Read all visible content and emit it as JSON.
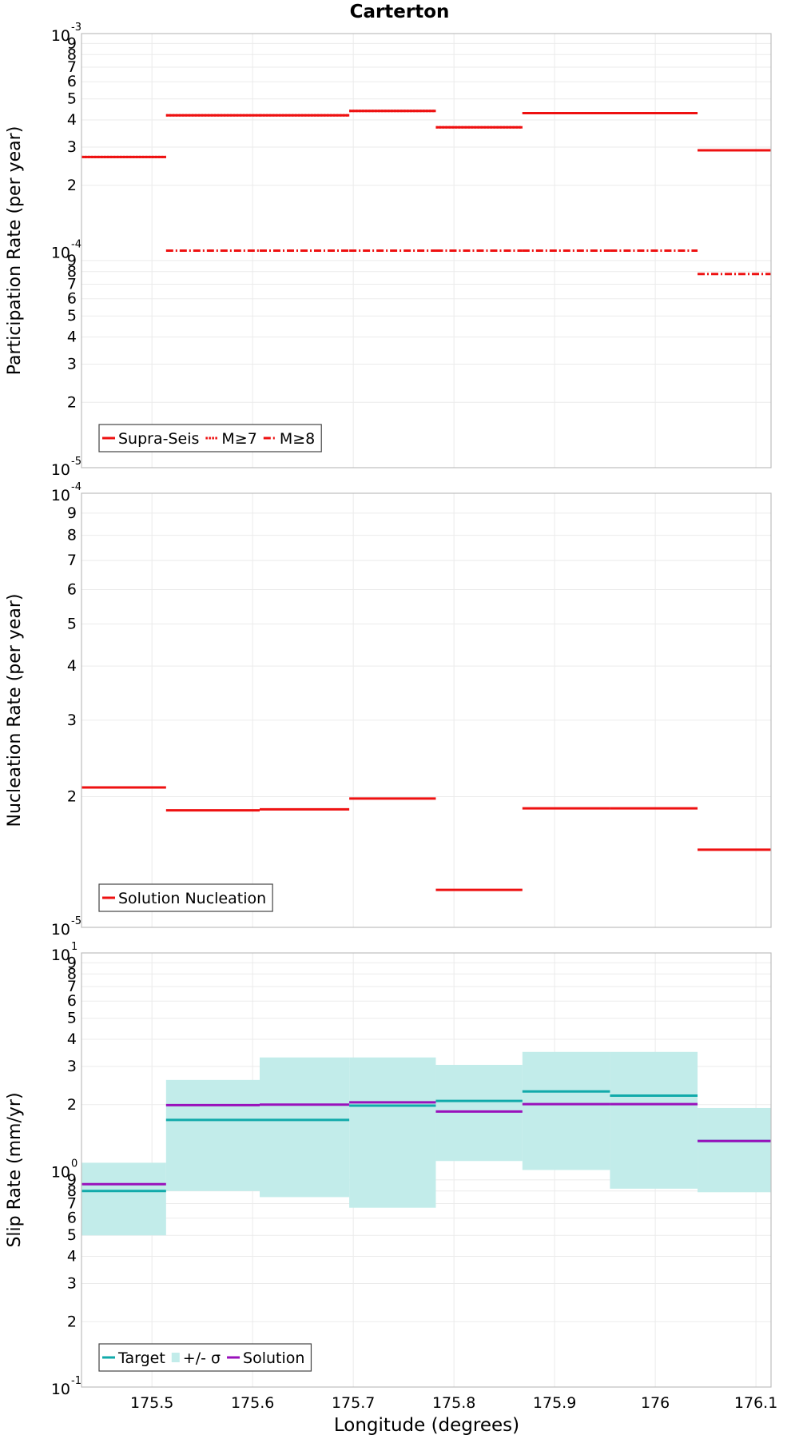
{
  "title": "Carterton",
  "xlabel": "Longitude (degrees)",
  "x_ticks": [
    {
      "value": 175.5,
      "label": "175.5"
    },
    {
      "value": 175.6,
      "label": "175.6"
    },
    {
      "value": 175.7,
      "label": "175.7"
    },
    {
      "value": 175.8,
      "label": "175.8"
    },
    {
      "value": 175.9,
      "label": "175.9"
    },
    {
      "value": 176.0,
      "label": "176"
    },
    {
      "value": 176.1,
      "label": "176.1"
    }
  ],
  "colors": {
    "red": "#ee1111",
    "teal": "#11aaaa",
    "band": "#c2ecea",
    "purple": "#9911bb"
  },
  "chart_data": [
    {
      "type": "line",
      "ylabel": "Participation Rate (per year)",
      "yscale": "log",
      "ylim": [
        1e-05,
        0.001
      ],
      "xlim": [
        175.43,
        176.115
      ],
      "decades": [
        {
          "base": "10",
          "exp": "-5"
        },
        {
          "base": "10",
          "exp": "-4"
        },
        {
          "base": "10",
          "exp": "-3"
        }
      ],
      "series": [
        {
          "name": "Supra-Seis",
          "style": "solid",
          "color": "#ee1111",
          "steps": [
            [
              175.43,
              175.514,
              0.00027
            ],
            [
              175.514,
              175.607,
              0.00042
            ],
            [
              175.607,
              175.696,
              0.00042
            ],
            [
              175.696,
              175.782,
              0.00044
            ],
            [
              175.782,
              175.868,
              0.00037
            ],
            [
              175.868,
              175.955,
              0.00043
            ],
            [
              175.955,
              176.042,
              0.00043
            ],
            [
              176.042,
              176.115,
              0.00029
            ]
          ]
        },
        {
          "name": "M≥7",
          "style": "dotted",
          "color": "#ee1111",
          "steps": [
            [
              175.43,
              175.514,
              0.00027
            ],
            [
              175.514,
              175.607,
              0.00042
            ],
            [
              175.607,
              175.696,
              0.00042
            ],
            [
              175.696,
              175.782,
              0.00044
            ],
            [
              175.782,
              175.868,
              0.00037
            ],
            [
              175.868,
              175.955,
              0.00043
            ],
            [
              175.955,
              176.042,
              0.00043
            ],
            [
              176.042,
              176.115,
              0.00029
            ]
          ]
        },
        {
          "name": "M≥8",
          "style": "dashdot",
          "color": "#ee1111",
          "steps": [
            [
              175.514,
              175.607,
              0.0001
            ],
            [
              175.607,
              175.696,
              0.0001
            ],
            [
              175.696,
              175.782,
              0.0001
            ],
            [
              175.782,
              175.868,
              0.0001
            ],
            [
              175.868,
              175.955,
              0.0001
            ],
            [
              175.955,
              176.042,
              0.0001
            ],
            [
              176.042,
              176.115,
              7.8e-05
            ]
          ]
        }
      ],
      "legend": [
        {
          "label": "Supra-Seis",
          "kind": "solid",
          "color": "#ee1111"
        },
        {
          "label": "M≥7",
          "kind": "dotted",
          "color": "#ee1111"
        },
        {
          "label": "M≥8",
          "kind": "dashdot",
          "color": "#ee1111"
        }
      ],
      "legend_position": "bottom-left"
    },
    {
      "type": "line",
      "ylabel": "Nucleation Rate (per year)",
      "yscale": "log",
      "ylim": [
        1e-05,
        0.0001
      ],
      "xlim": [
        175.43,
        176.115
      ],
      "decades": [
        {
          "base": "10",
          "exp": "-5"
        },
        {
          "base": "10",
          "exp": "-4"
        }
      ],
      "series": [
        {
          "name": "Solution Nucleation",
          "style": "solid",
          "color": "#ee1111",
          "steps": [
            [
              175.43,
              175.514,
              2.1e-05
            ],
            [
              175.514,
              175.607,
              1.86e-05
            ],
            [
              175.607,
              175.696,
              1.87e-05
            ],
            [
              175.696,
              175.782,
              1.98e-05
            ],
            [
              175.782,
              175.868,
              1.22e-05
            ],
            [
              175.868,
              175.955,
              1.88e-05
            ],
            [
              175.955,
              176.042,
              1.88e-05
            ],
            [
              176.042,
              176.115,
              1.51e-05
            ]
          ]
        }
      ],
      "legend": [
        {
          "label": "Solution Nucleation",
          "kind": "solid",
          "color": "#ee1111"
        }
      ],
      "legend_position": "bottom-left"
    },
    {
      "type": "line",
      "ylabel": "Slip Rate (mm/yr)",
      "yscale": "log",
      "ylim": [
        0.1,
        10
      ],
      "xlim": [
        175.43,
        176.115
      ],
      "decades": [
        {
          "base": "10",
          "exp": "-1"
        },
        {
          "base": "10",
          "exp": "0"
        },
        {
          "base": "10",
          "exp": "1"
        }
      ],
      "bands": [
        [
          175.43,
          175.514,
          0.5,
          1.08
        ],
        [
          175.514,
          175.607,
          0.8,
          2.6
        ],
        [
          175.607,
          175.696,
          0.75,
          3.3
        ],
        [
          175.696,
          175.782,
          0.67,
          3.3
        ],
        [
          175.782,
          175.868,
          1.1,
          3.05
        ],
        [
          175.868,
          175.955,
          1.0,
          3.5
        ],
        [
          175.955,
          176.042,
          0.82,
          3.5
        ],
        [
          176.042,
          176.115,
          0.79,
          1.93
        ]
      ],
      "series": [
        {
          "name": "Target",
          "style": "solid",
          "color": "#11aaaa",
          "steps": [
            [
              175.43,
              175.514,
              0.8
            ],
            [
              175.514,
              175.607,
              1.7
            ],
            [
              175.607,
              175.696,
              1.7
            ],
            [
              175.696,
              175.782,
              1.98
            ],
            [
              175.782,
              175.868,
              2.08
            ],
            [
              175.868,
              175.955,
              2.3
            ],
            [
              175.955,
              176.042,
              2.2
            ],
            [
              176.042,
              176.115,
              1.36
            ]
          ]
        },
        {
          "name": "Solution",
          "style": "solid",
          "color": "#9911bb",
          "steps": [
            [
              175.43,
              175.514,
              0.86
            ],
            [
              175.514,
              175.607,
              1.99
            ],
            [
              175.607,
              175.696,
              2.0
            ],
            [
              175.696,
              175.782,
              2.05
            ],
            [
              175.782,
              175.868,
              1.86
            ],
            [
              175.868,
              175.955,
              2.01
            ],
            [
              175.955,
              176.042,
              2.01
            ],
            [
              176.042,
              176.115,
              1.36
            ]
          ]
        }
      ],
      "legend": [
        {
          "label": "Target",
          "kind": "solid",
          "color": "#11aaaa"
        },
        {
          "label": "+/- σ",
          "kind": "band",
          "color": "#c2ecea"
        },
        {
          "label": "Solution",
          "kind": "solid",
          "color": "#9911bb"
        }
      ],
      "legend_position": "bottom-left"
    }
  ]
}
